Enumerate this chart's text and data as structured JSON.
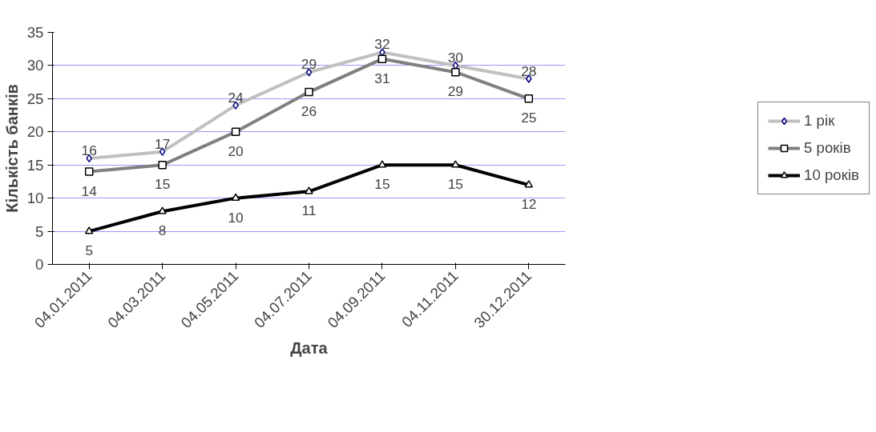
{
  "chart_data": {
    "type": "line",
    "xlabel": "Дата",
    "ylabel": "Кількість банків",
    "categories": [
      "04.01.2011",
      "04.03.2011",
      "04.05.2011",
      "04.07.2011",
      "04.09.2011",
      "04.11.2011",
      "30.12.2011"
    ],
    "series": [
      {
        "name": "1 рік",
        "color": "#c0c0c0",
        "marker": "diamond",
        "values": [
          16,
          17,
          24,
          29,
          32,
          30,
          28
        ]
      },
      {
        "name": "5 років",
        "color": "#808080",
        "marker": "square",
        "values": [
          14,
          15,
          20,
          26,
          31,
          29,
          25
        ]
      },
      {
        "name": "10 років",
        "color": "#000000",
        "marker": "triangle",
        "values": [
          5,
          8,
          10,
          11,
          15,
          15,
          12
        ]
      }
    ],
    "ylim": [
      0,
      35
    ],
    "yticks": [
      0,
      5,
      10,
      15,
      20,
      25,
      30,
      35
    ],
    "grid": "y",
    "legend": "right",
    "data_labels": true,
    "line_style": "solid"
  }
}
